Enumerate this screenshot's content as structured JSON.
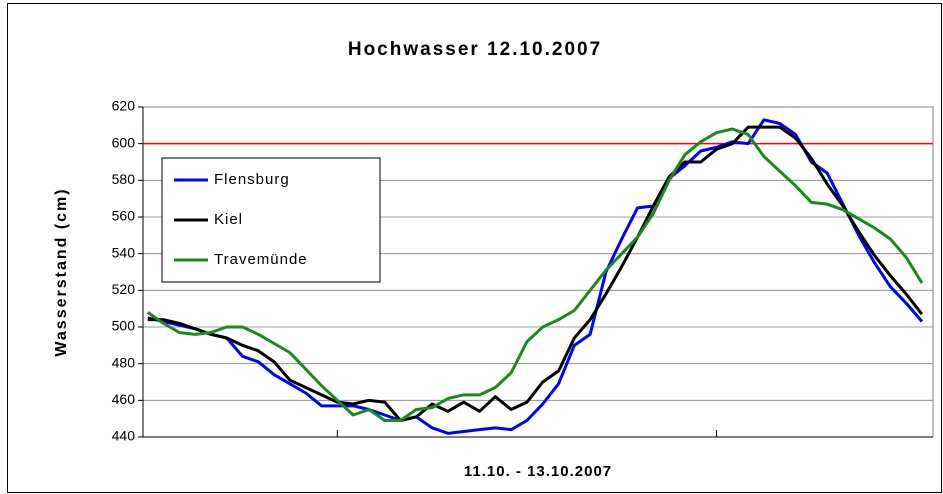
{
  "chart_data": {
    "type": "line",
    "title": "Hochwasser 12.10.2007",
    "x_label": "11.10. - 13.10.2007",
    "y_label": "Wasserstand (cm)",
    "x": [
      0,
      1,
      2,
      3,
      4,
      5,
      6,
      7,
      8,
      9,
      10,
      11,
      12,
      13,
      14,
      15,
      16,
      17,
      18,
      19,
      20,
      21,
      22,
      23,
      24,
      25,
      26,
      27,
      28,
      29,
      30,
      31,
      32,
      33,
      34,
      35,
      36,
      37,
      38,
      39,
      40,
      41,
      42,
      43,
      44,
      45,
      46,
      47,
      48,
      49
    ],
    "xlim": [
      -0.3,
      49.7
    ],
    "xticks": [
      12,
      36
    ],
    "ylim": [
      440,
      620
    ],
    "yticks": [
      440,
      460,
      480,
      500,
      520,
      540,
      560,
      580,
      600,
      620
    ],
    "grid": true,
    "legend": "upper left",
    "reference_line": {
      "value": 600,
      "color": "#ff0000"
    },
    "series": [
      {
        "name": "Flensburg",
        "color": "#0000ff",
        "values": [
          505,
          503,
          501,
          499,
          496,
          494,
          484,
          481,
          474,
          469,
          464,
          457,
          457,
          457,
          455,
          452,
          449,
          451,
          445,
          442,
          443,
          444,
          445,
          444,
          449,
          458,
          469,
          490,
          496,
          530,
          548,
          565,
          566,
          581,
          588,
          596,
          598,
          601,
          600,
          613,
          611,
          605,
          590,
          584,
          567,
          550,
          535,
          522,
          513,
          503
        ]
      },
      {
        "name": "Kiel",
        "color": "#000000",
        "values": [
          504,
          504,
          502,
          499,
          496,
          494,
          490,
          487,
          481,
          471,
          467,
          463,
          459,
          458,
          460,
          459,
          449,
          451,
          458,
          454,
          459,
          454,
          462,
          455,
          459,
          470,
          476,
          494,
          504,
          518,
          533,
          549,
          566,
          582,
          590,
          590,
          597,
          600,
          609,
          609,
          609,
          603,
          592,
          578,
          566,
          552,
          539,
          528,
          518,
          507
        ]
      },
      {
        "name": "Travemünde",
        "color": "#1a8a1a",
        "values": [
          508,
          502,
          497,
          496,
          497,
          500,
          500,
          496,
          491,
          486,
          477,
          468,
          460,
          452,
          455,
          449,
          449,
          455,
          456,
          461,
          463,
          463,
          467,
          475,
          492,
          500,
          504,
          509,
          520,
          531,
          540,
          549,
          562,
          580,
          594,
          601,
          606,
          608,
          605,
          593,
          585,
          577,
          568,
          567,
          564,
          559,
          554,
          548,
          538,
          524
        ]
      }
    ]
  }
}
